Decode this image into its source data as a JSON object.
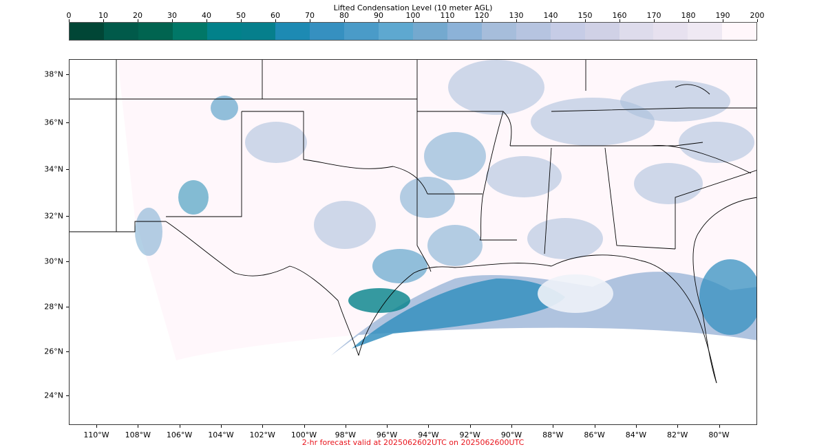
{
  "colorbar": {
    "title": "Lifted Condensation Level (10 meter AGL)",
    "ticks": [
      "0",
      "10",
      "20",
      "30",
      "40",
      "50",
      "60",
      "70",
      "80",
      "90",
      "100",
      "110",
      "120",
      "130",
      "140",
      "150",
      "160",
      "170",
      "180",
      "190",
      "200"
    ],
    "colors": [
      "#014636",
      "#015a4a",
      "#016450",
      "#017767",
      "#02818a",
      "#067f8c",
      "#1d8ab3",
      "#3690c0",
      "#4a9bc8",
      "#5ea8d0",
      "#74a9cf",
      "#8cb2d8",
      "#a6bddb",
      "#b6c4e0",
      "#c6cce6",
      "#d0d1e6",
      "#dedcec",
      "#e7e1ef",
      "#efe9f3",
      "#fff7fb"
    ]
  },
  "map": {
    "land_color": "#fff7fb",
    "moist_colors": [
      "#a6bddb",
      "#74a9cf",
      "#3690c0",
      "#1d8ab3",
      "#02818a"
    ],
    "lat_labels": [
      "38°N",
      "36°N",
      "34°N",
      "32°N",
      "30°N",
      "28°N",
      "26°N",
      "24°N"
    ],
    "lon_labels": [
      "110°W",
      "108°W",
      "106°W",
      "104°W",
      "102°W",
      "100°W",
      "98°W",
      "96°W",
      "94°W",
      "92°W",
      "90°W",
      "88°W",
      "86°W",
      "84°W",
      "82°W",
      "80°W"
    ]
  },
  "footer": {
    "valid_text": "2-hr forecast valid at 2025062602UTC on 2025062600UTC",
    "valid_color": "#e8141c"
  }
}
